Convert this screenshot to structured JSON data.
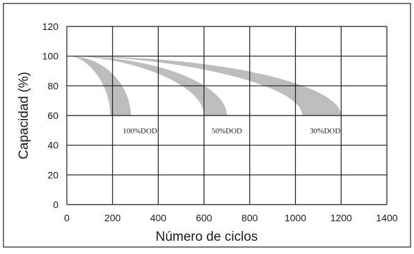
{
  "chart_data": {
    "type": "area",
    "title": "",
    "xlabel": "Número de ciclos",
    "ylabel": "Capacidad (%)",
    "xlim": [
      0,
      1400
    ],
    "ylim": [
      0,
      120
    ],
    "xticks": [
      "0",
      "200",
      "400",
      "600",
      "800",
      "1000",
      "1200",
      "1400"
    ],
    "yticks": [
      "0",
      "20",
      "40",
      "60",
      "80",
      "100",
      "120"
    ],
    "grid": true,
    "band_color": "#bdbdbd",
    "series": [
      {
        "name": "100%DOD",
        "start": [
          10,
          100
        ],
        "inner_end": [
          190,
          60
        ],
        "outer_end": [
          280,
          60
        ],
        "label_pos": [
          320,
          50
        ]
      },
      {
        "name": "50%DOD",
        "start": [
          10,
          100
        ],
        "inner_end": [
          600,
          60
        ],
        "outer_end": [
          700,
          60
        ],
        "label_pos": [
          700,
          50
        ]
      },
      {
        "name": "30%DOD",
        "start": [
          10,
          100
        ],
        "inner_end": [
          1030,
          60
        ],
        "outer_end": [
          1200,
          60
        ],
        "label_pos": [
          1130,
          50
        ]
      }
    ]
  }
}
